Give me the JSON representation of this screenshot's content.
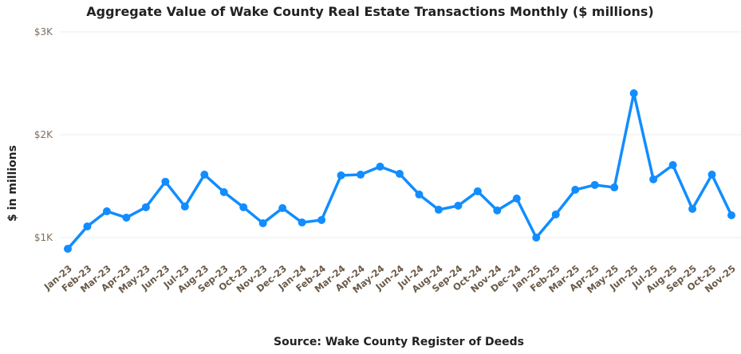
{
  "chart_data": {
    "type": "line",
    "title": "Aggregate Value of Wake County Real Estate Transactions Monthly ($ millions)",
    "xlabel": "Source: Wake County Register of Deeds",
    "ylabel": "$ in millions",
    "ylim": [
      700,
      3000
    ],
    "yticks": [
      1000,
      2000,
      3000
    ],
    "ytick_labels": [
      "$1K",
      "$2K",
      "$3K"
    ],
    "grid": true,
    "line_color": "#118dff",
    "categories": [
      "Jan-23",
      "Feb-23",
      "Mar-23",
      "Apr-23",
      "May-23",
      "Jun-23",
      "Jul-23",
      "Aug-23",
      "Sep-23",
      "Oct-23",
      "Nov-23",
      "Dec-23",
      "Jan-24",
      "Feb-24",
      "Mar-24",
      "Apr-24",
      "May-24",
      "Jun-24",
      "Jul-24",
      "Aug-24",
      "Sep-24",
      "Oct-24",
      "Nov-24",
      "Dec-24",
      "Jan-25",
      "Feb-25",
      "Mar-25",
      "Apr-25",
      "May-25",
      "Jun-25",
      "Jul-25",
      "Aug-25",
      "Sep-25",
      "Oct-25",
      "Nov-25"
    ],
    "series": [
      {
        "values": [
          891,
          1109,
          1256,
          1194,
          1295,
          1543,
          1302,
          1612,
          1442,
          1295,
          1140,
          1287,
          1147,
          1171,
          1605,
          1612,
          1690,
          1620,
          1419,
          1271,
          1310,
          1450,
          1264,
          1380,
          1000,
          1225,
          1465,
          1512,
          1488,
          2403,
          1566,
          1705,
          1279,
          1612,
          1217
        ]
      }
    ]
  }
}
